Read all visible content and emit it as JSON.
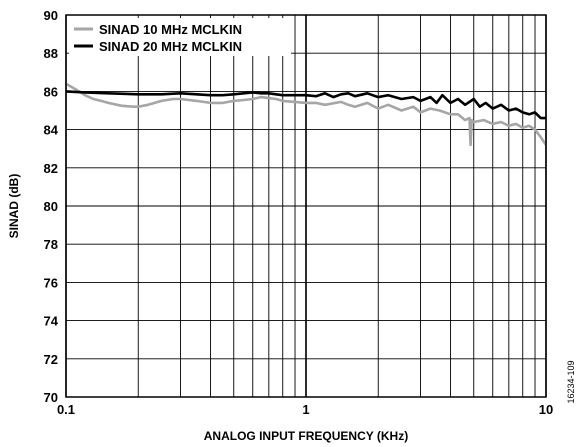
{
  "figure_id": "16234-109",
  "chart_data": {
    "type": "line",
    "xlabel": "ANALOG INPUT FREQUENCY (KHz)",
    "ylabel": "SINAD (dB)",
    "xscale": "log",
    "xlim": [
      0.1,
      10
    ],
    "ylim": [
      70,
      90
    ],
    "xticks": [
      0.1,
      1,
      10
    ],
    "xtick_labels": [
      "0.1",
      "1",
      "10"
    ],
    "yticks": [
      70,
      72,
      74,
      76,
      78,
      80,
      82,
      84,
      86,
      88,
      90
    ],
    "ytick_labels": [
      "70",
      "72",
      "74",
      "76",
      "78",
      "80",
      "82",
      "84",
      "86",
      "88",
      "90"
    ],
    "grid": true,
    "legend_position": "top-left",
    "series": [
      {
        "name": "SINAD 10 MHz MCLKIN",
        "color": "#a6a6a6",
        "x": [
          0.1,
          0.11,
          0.12,
          0.13,
          0.14,
          0.15,
          0.17,
          0.19,
          0.2,
          0.22,
          0.25,
          0.28,
          0.3,
          0.35,
          0.4,
          0.45,
          0.5,
          0.55,
          0.6,
          0.65,
          0.7,
          0.75,
          0.8,
          0.9,
          1.0,
          1.1,
          1.2,
          1.4,
          1.5,
          1.6,
          1.8,
          2.0,
          2.2,
          2.5,
          2.8,
          3.0,
          3.3,
          3.6,
          4.0,
          4.3,
          4.6,
          4.8,
          4.85,
          4.9,
          5.0,
          5.5,
          6.0,
          6.5,
          7.0,
          7.5,
          8.0,
          8.5,
          9.0,
          9.5,
          10.0
        ],
        "values": [
          86.4,
          86.1,
          85.8,
          85.6,
          85.5,
          85.4,
          85.25,
          85.2,
          85.2,
          85.3,
          85.5,
          85.6,
          85.6,
          85.5,
          85.4,
          85.4,
          85.5,
          85.55,
          85.6,
          85.7,
          85.65,
          85.6,
          85.5,
          85.45,
          85.4,
          85.4,
          85.3,
          85.45,
          85.3,
          85.2,
          85.4,
          85.1,
          85.3,
          85.0,
          85.2,
          84.9,
          85.1,
          85.0,
          84.8,
          84.8,
          84.5,
          84.6,
          83.2,
          84.5,
          84.4,
          84.5,
          84.3,
          84.4,
          84.2,
          84.3,
          84.1,
          84.2,
          84.0,
          83.6,
          83.2
        ]
      },
      {
        "name": "SINAD 20 MHz MCLKIN",
        "color": "#000000",
        "x": [
          0.1,
          0.12,
          0.15,
          0.2,
          0.25,
          0.3,
          0.35,
          0.4,
          0.45,
          0.5,
          0.55,
          0.6,
          0.65,
          0.7,
          0.75,
          0.8,
          0.9,
          1.0,
          1.1,
          1.2,
          1.3,
          1.4,
          1.5,
          1.6,
          1.8,
          2.0,
          2.2,
          2.5,
          2.8,
          3.0,
          3.3,
          3.5,
          3.7,
          4.0,
          4.3,
          4.6,
          5.0,
          5.3,
          5.6,
          6.0,
          6.5,
          7.0,
          7.5,
          8.0,
          8.5,
          9.0,
          9.5,
          10.0
        ],
        "values": [
          86.0,
          85.95,
          85.9,
          85.85,
          85.85,
          85.9,
          85.85,
          85.8,
          85.8,
          85.85,
          85.9,
          85.95,
          85.9,
          85.9,
          85.85,
          85.8,
          85.8,
          85.8,
          85.75,
          85.9,
          85.7,
          85.85,
          85.9,
          85.75,
          85.9,
          85.7,
          85.8,
          85.6,
          85.7,
          85.5,
          85.7,
          85.4,
          85.8,
          85.4,
          85.6,
          85.3,
          85.6,
          85.2,
          85.4,
          85.1,
          85.3,
          85.0,
          85.1,
          84.9,
          84.8,
          84.9,
          84.6,
          84.6
        ]
      }
    ]
  }
}
